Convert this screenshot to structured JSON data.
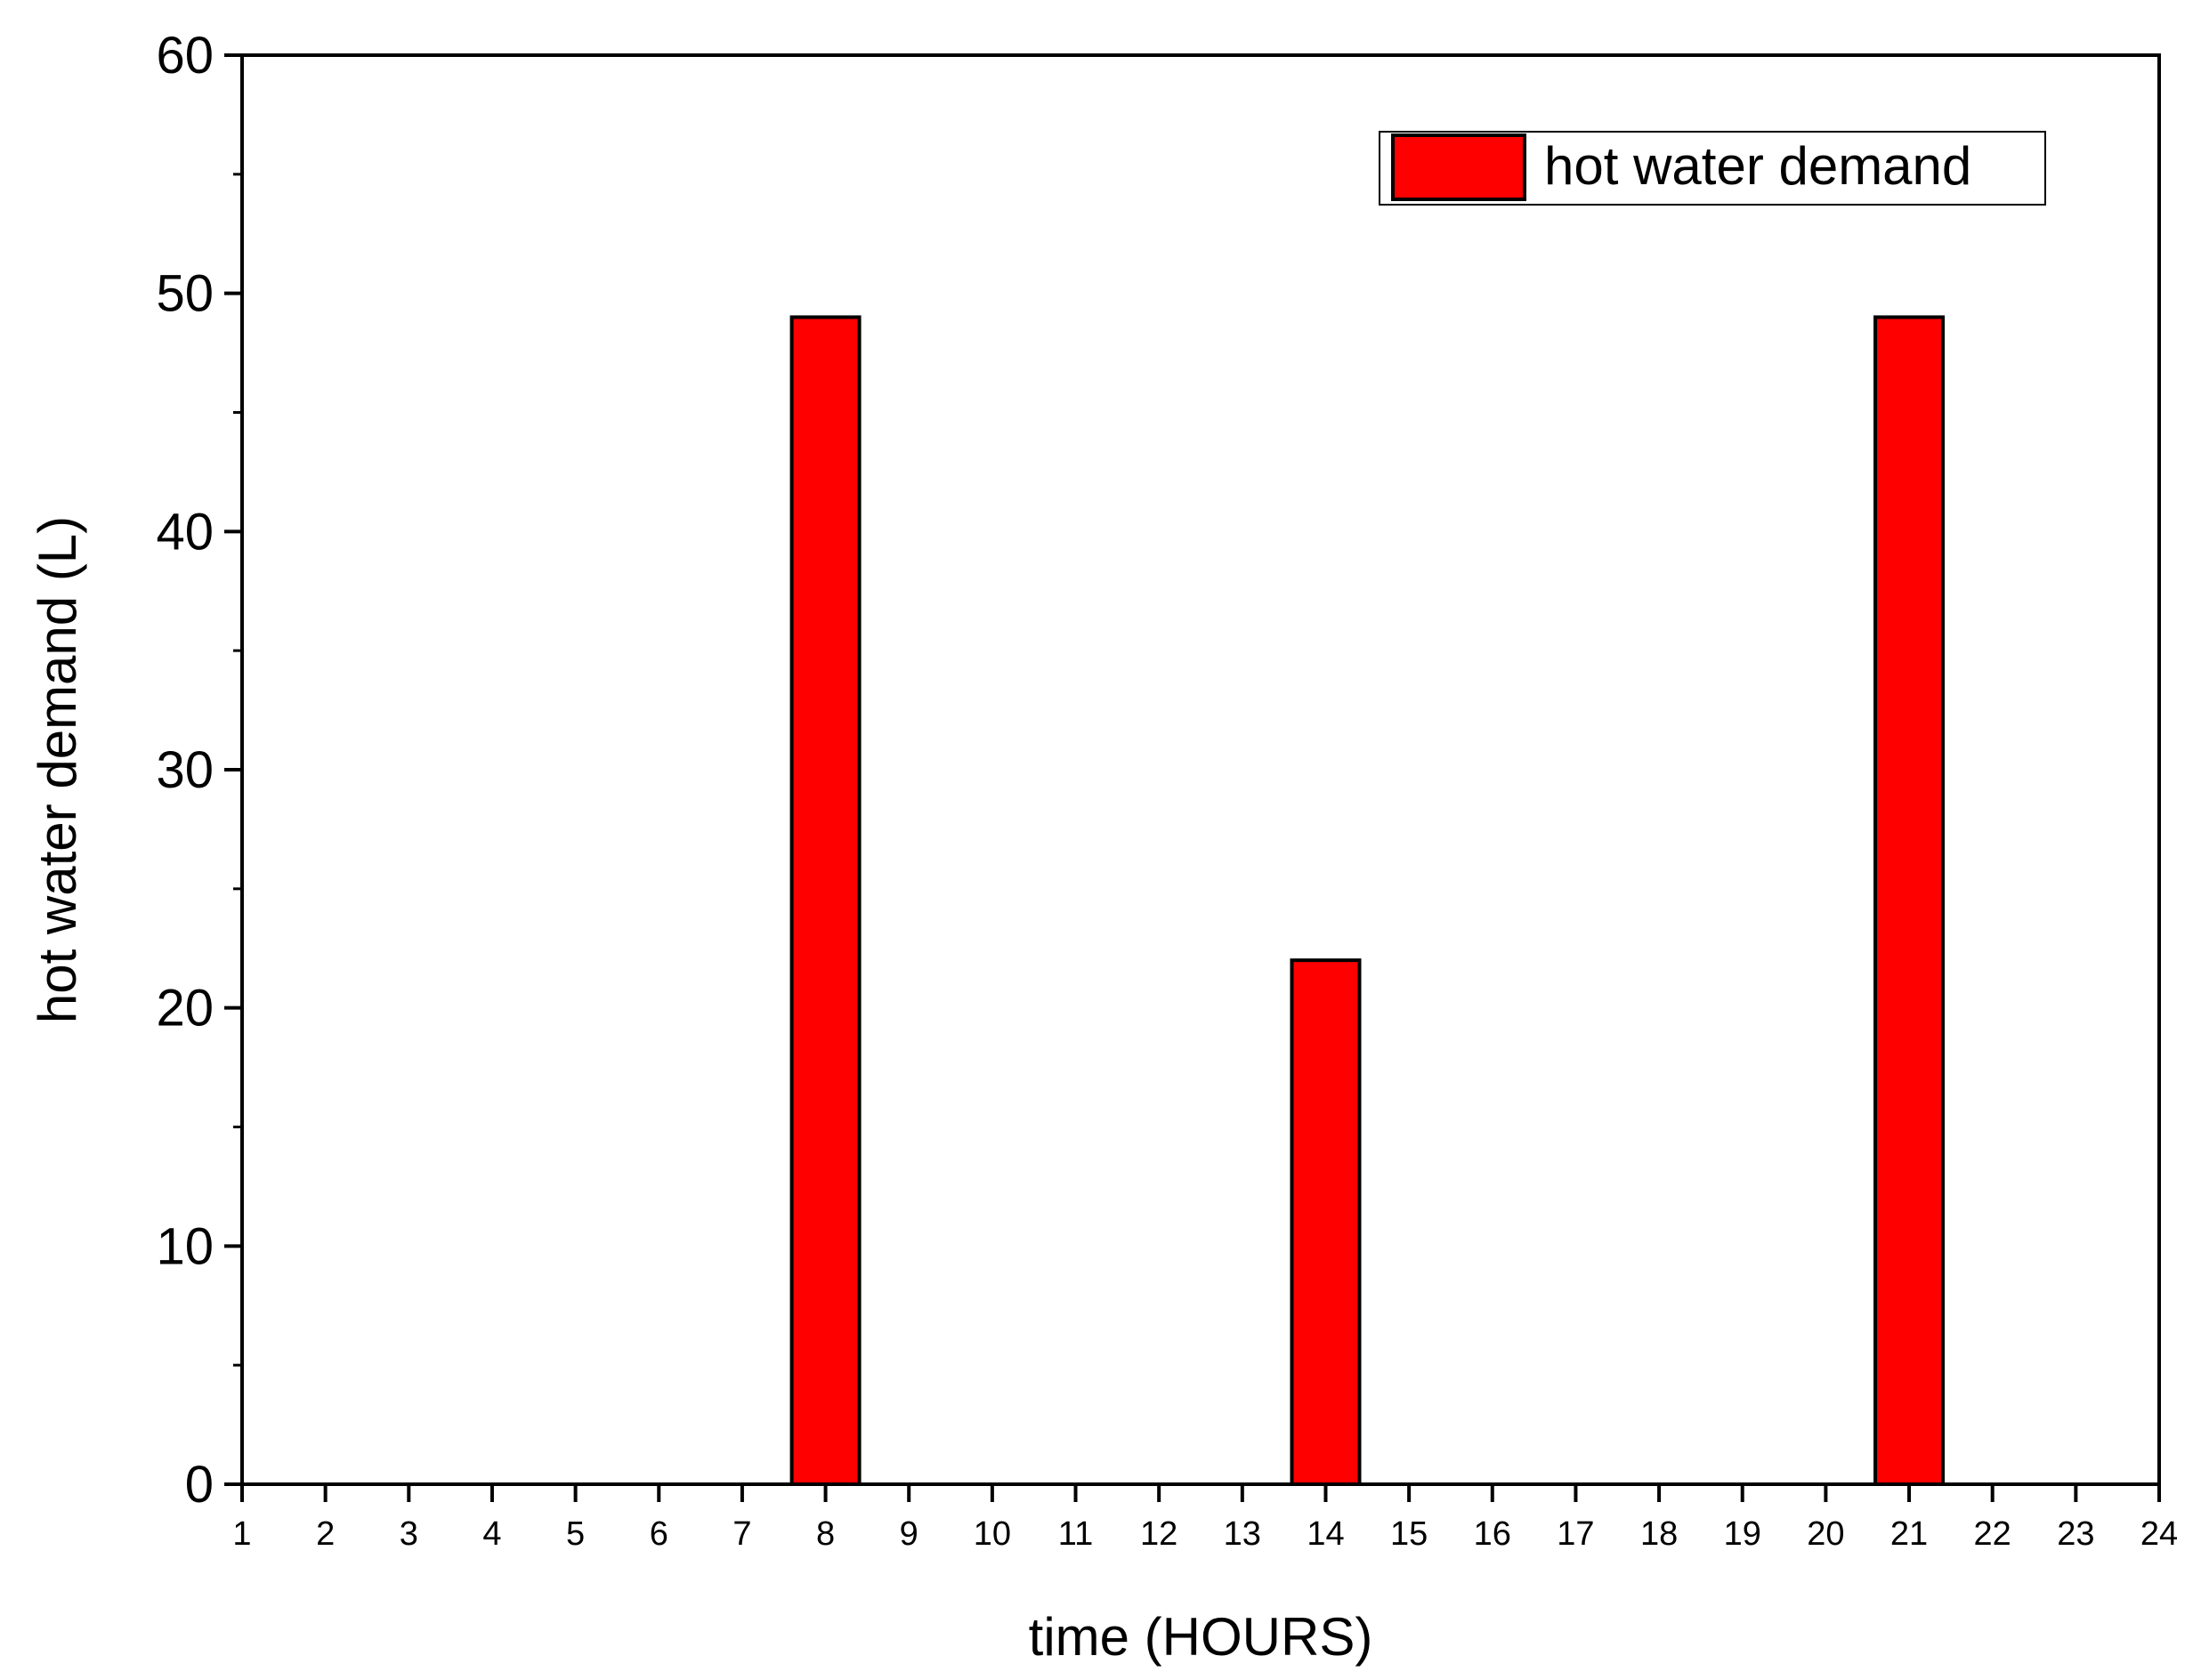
{
  "chart_data": {
    "type": "bar",
    "title": "",
    "xlabel": "time (HOURS)",
    "ylabel": "hot water demand (L)",
    "x_ticks": [
      1,
      2,
      3,
      4,
      5,
      6,
      7,
      8,
      9,
      10,
      11,
      12,
      13,
      14,
      15,
      16,
      17,
      18,
      19,
      20,
      21,
      22,
      23,
      24
    ],
    "y_ticks": [
      0,
      10,
      20,
      30,
      40,
      50,
      60
    ],
    "xlim": [
      1,
      24
    ],
    "ylim": [
      0,
      60
    ],
    "grid": false,
    "legend_position": "top-right",
    "series": [
      {
        "name": "hot water demand",
        "color": "#ff0000",
        "points": [
          {
            "x": 8,
            "y": 49
          },
          {
            "x": 14,
            "y": 22
          },
          {
            "x": 21,
            "y": 49
          }
        ]
      }
    ]
  }
}
